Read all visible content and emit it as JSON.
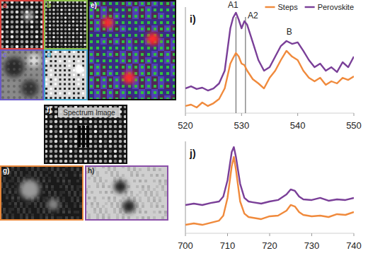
{
  "images": [
    {
      "label": "a"
    },
    {
      "label": "b"
    },
    {
      "label": "c"
    },
    {
      "label": "d"
    },
    {
      "label": "e)"
    },
    {
      "label": "f)",
      "caption": "Spectrum Image"
    },
    {
      "label": "g)"
    },
    {
      "label": "h)"
    }
  ],
  "chart_data": [
    {
      "type": "line",
      "label": "i)",
      "legend": "top-right",
      "tick_labels": "x",
      "x": [
        520,
        521,
        522,
        523,
        524,
        525,
        526,
        527,
        528,
        528.5,
        529,
        529.5,
        530,
        530.5,
        531,
        532,
        533,
        534,
        535,
        536,
        537,
        538,
        539,
        540,
        541,
        542,
        543,
        544,
        545,
        546,
        547,
        548,
        549,
        550
      ],
      "xlim": [
        520,
        550
      ],
      "xticks": [
        520,
        530,
        540,
        550
      ],
      "ylim": [
        0,
        100
      ],
      "series": [
        {
          "name": "Steps",
          "color": "#f08a3c",
          "values": [
            6.7,
            8,
            5.3,
            10,
            6.7,
            9.3,
            13.3,
            23.3,
            46.7,
            52,
            56.7,
            53.3,
            46.7,
            45.3,
            40,
            32,
            28,
            23.3,
            33.3,
            40,
            50,
            58.7,
            53.3,
            50,
            40,
            33.3,
            30,
            33.3,
            26.7,
            30,
            28,
            33.3,
            31.3,
            34.7
          ]
        },
        {
          "name": "Perovskite",
          "color": "#7a3f98",
          "values": [
            23.3,
            25.3,
            22.7,
            24,
            21.3,
            23.3,
            28,
            40,
            80,
            90,
            94.7,
            88,
            80,
            86.7,
            83.3,
            66.7,
            50,
            40,
            43.3,
            53.3,
            63.3,
            68,
            65.3,
            66.7,
            58.7,
            50,
            43.3,
            46.7,
            40,
            43.3,
            38.7,
            48,
            43.3,
            53.3
          ]
        }
      ],
      "annotations": [
        {
          "text": "A1",
          "x": 529
        },
        {
          "text": "A2",
          "x": 530.7
        },
        {
          "text": "B",
          "x": 538.5,
          "y": 74
        }
      ]
    },
    {
      "type": "line",
      "label": "j)",
      "tick_labels": "x",
      "x": [
        700,
        702,
        704,
        706,
        708,
        709,
        710,
        711,
        711.5,
        712,
        713,
        714,
        715,
        716,
        718,
        720,
        722,
        724,
        725,
        726,
        727,
        728,
        730,
        732,
        734,
        736,
        738,
        740
      ],
      "xlim": [
        700,
        740
      ],
      "xticks": [
        700,
        710,
        720,
        730,
        740
      ],
      "ylim": [
        0,
        100
      ],
      "series": [
        {
          "name": "Steps",
          "color": "#f08a3c",
          "values": [
            9.2,
            10.8,
            9.2,
            11.5,
            13.8,
            19.2,
            38.5,
            73.1,
            83.1,
            69.2,
            34.6,
            21.5,
            17.7,
            16.9,
            15.4,
            18.5,
            19.2,
            24.6,
            30.8,
            29.2,
            23.1,
            20,
            18.5,
            19.2,
            17.7,
            20.8,
            20,
            23.1
          ]
        },
        {
          "name": "Perovskite",
          "color": "#7a3f98",
          "values": [
            30.8,
            32.3,
            30.8,
            33,
            34.6,
            40,
            57.7,
            88.5,
            93.8,
            83.1,
            53.8,
            38.5,
            34.6,
            33.8,
            32.3,
            34.6,
            36.2,
            42.3,
            47.7,
            46.2,
            40,
            36.9,
            36.2,
            38.5,
            35.4,
            36.9,
            36.2,
            38.5
          ]
        }
      ]
    }
  ]
}
